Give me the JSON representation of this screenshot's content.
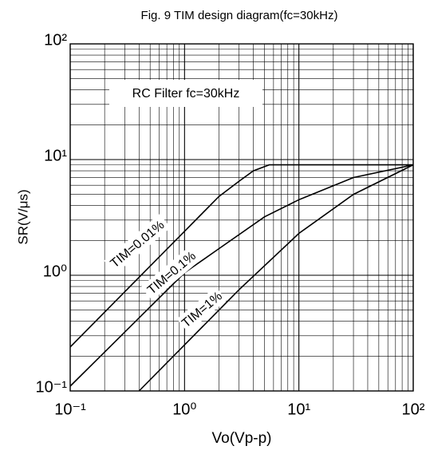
{
  "chart_data": {
    "type": "line",
    "title": "Fig. 9 TIM design diagram(fc=30kHz)",
    "x_label": "Vo(Vp-p)",
    "y_label": "SR(V/μs)",
    "annotation": "RC Filter fc=30kHz",
    "x_log": true,
    "y_log": true,
    "grid": true,
    "minor_grid": true,
    "xlim": [
      0.1,
      100
    ],
    "ylim": [
      0.1,
      100
    ],
    "xticks": [
      {
        "value": 0.1,
        "label": "10⁻¹"
      },
      {
        "value": 1,
        "label": "10⁰"
      },
      {
        "value": 10,
        "label": "10¹"
      },
      {
        "value": 100,
        "label": "10²"
      }
    ],
    "yticks": [
      {
        "value": 0.1,
        "label": "10⁻¹"
      },
      {
        "value": 1,
        "label": "10⁰"
      },
      {
        "value": 10,
        "label": "10¹"
      },
      {
        "value": 100,
        "label": "10²"
      }
    ],
    "series": [
      {
        "name": "TIM=0.01%",
        "color": "#000000",
        "x": [
          0.1,
          1,
          2,
          3,
          4,
          5.5,
          100
        ],
        "values": [
          0.24,
          2.4,
          4.8,
          6.5,
          8,
          9,
          9
        ]
      },
      {
        "name": "TIM=0.1%",
        "color": "#000000",
        "x": [
          0.1,
          1,
          2,
          5,
          10,
          30,
          100
        ],
        "values": [
          0.11,
          1.05,
          1.7,
          3.2,
          4.5,
          7,
          9
        ]
      },
      {
        "name": "TIM=1%",
        "color": "#000000",
        "x": [
          0.4,
          1,
          3,
          10,
          30,
          100
        ],
        "values": [
          0.1,
          0.25,
          0.75,
          2.3,
          5,
          9
        ]
      }
    ]
  }
}
